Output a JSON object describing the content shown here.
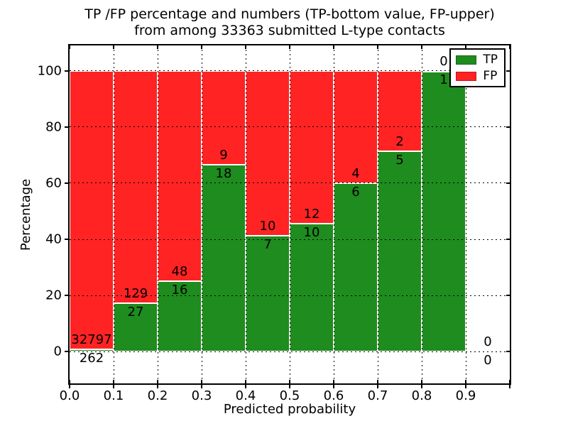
{
  "chart_data": {
    "type": "bar",
    "variant": "stacked-percentage-histogram",
    "title_line1": "TP /FP percentage and numbers (TP-bottom value, FP-upper)",
    "title_line2": "from among 33363 submitted L-type contacts",
    "xlabel": "Predicted probability",
    "ylabel": "Percentage",
    "xlim": [
      0.0,
      1.0
    ],
    "ylim": [
      -11.3,
      109
    ],
    "grid": true,
    "legend_position": "upper right",
    "bin_edges": [
      0.0,
      0.1,
      0.2,
      0.3,
      0.4,
      0.5,
      0.6,
      0.7,
      0.8,
      0.9,
      1.0
    ],
    "x_tick_values": [
      0.0,
      0.1,
      0.2,
      0.3,
      0.4,
      0.5,
      0.6,
      0.7,
      0.8,
      0.9,
      1.0
    ],
    "x_tick_labels": [
      "0.0",
      "0.1",
      "0.2",
      "0.3",
      "0.4",
      "0.5",
      "0.6",
      "0.7",
      "0.8",
      "0.9",
      ""
    ],
    "y_tick_values": [
      0,
      20,
      40,
      60,
      80,
      100
    ],
    "y_tick_labels": [
      "0",
      "20",
      "40",
      "60",
      "80",
      "100"
    ],
    "series": [
      {
        "name": "TP",
        "color": "#1e8c1e",
        "label_position": "below-boundary",
        "values": [
          262,
          27,
          16,
          18,
          7,
          10,
          6,
          5,
          1,
          0
        ]
      },
      {
        "name": "FP",
        "color": "#ff2323",
        "label_position": "above-boundary",
        "values": [
          32797,
          129,
          48,
          9,
          10,
          12,
          4,
          2,
          0,
          0
        ]
      }
    ],
    "tp_percent_of_bin": [
      0.79,
      17.31,
      25.0,
      66.67,
      41.18,
      45.45,
      60.0,
      71.43,
      100.0,
      null
    ],
    "legend": {
      "entries": [
        {
          "label": "TP",
          "color": "#1e8c1e"
        },
        {
          "label": "FP",
          "color": "#ff2323"
        }
      ]
    }
  }
}
